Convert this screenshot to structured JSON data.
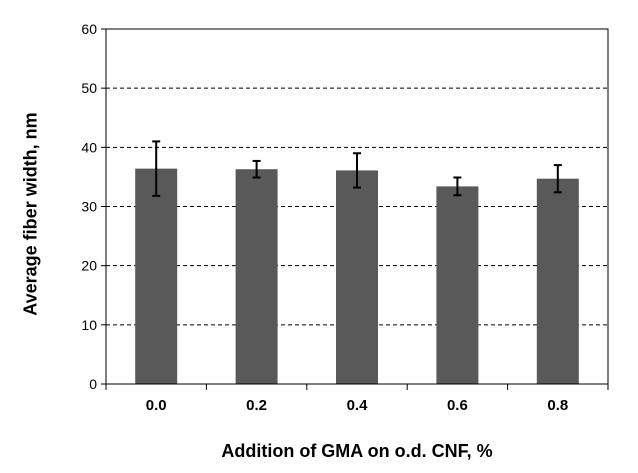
{
  "chart_data": {
    "type": "bar",
    "categories": [
      "0.0",
      "0.2",
      "0.4",
      "0.6",
      "0.8"
    ],
    "values": [
      36.4,
      36.3,
      36.1,
      33.4,
      34.7
    ],
    "error": [
      4.6,
      1.4,
      2.9,
      1.5,
      2.3
    ],
    "xlabel": "Addition of GMA on o.d. CNF, %",
    "ylabel": "Average fiber width, nm",
    "ylim": [
      0,
      60
    ],
    "yticks": [
      "0",
      "10",
      "20",
      "30",
      "40",
      "50",
      "60"
    ],
    "grid": true,
    "legend": "none",
    "colors": {
      "bar": "#595959",
      "error_bar": "#000000",
      "grid": "#000000",
      "axis": "#000000"
    }
  }
}
